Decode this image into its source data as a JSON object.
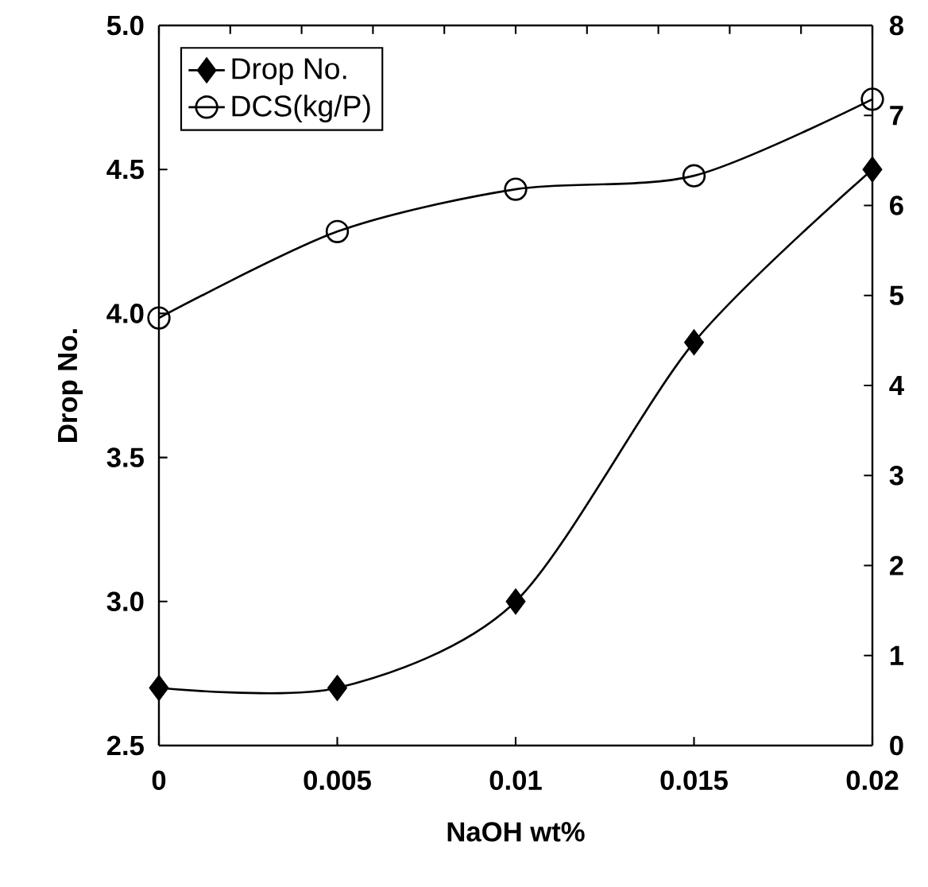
{
  "chart_data": {
    "type": "line",
    "xlabel": "NaOH wt%",
    "ylabel": "Drop No.",
    "x": [
      0,
      0.005,
      0.01,
      0.015,
      0.02
    ],
    "series": [
      {
        "name": "Drop No.",
        "color": "#000000",
        "marker": "diamond",
        "values": [
          2.7,
          2.7,
          3.0,
          3.9,
          4.5
        ]
      },
      {
        "name": "DCS(kg/P)",
        "color": "#000000",
        "marker": "circle",
        "axis": "y2",
        "values": [
          4.75,
          5.71,
          6.18,
          6.33,
          7.18
        ]
      }
    ],
    "xlim": [
      0,
      0.02
    ],
    "xticks": [
      0,
      0.005,
      0.01,
      0.015,
      0.02
    ],
    "ylim": [
      2.5,
      5.0
    ],
    "yticks": [
      {
        "value": 2.5,
        "label": "2.5"
      },
      {
        "value": 3.0,
        "label": "3.0"
      },
      {
        "value": 3.5,
        "label": "3.5"
      },
      {
        "value": 4.0,
        "label": "4.0"
      },
      {
        "value": 4.5,
        "label": "4.5"
      },
      {
        "value": 5.0,
        "label": "5.0"
      }
    ],
    "y2lim": [
      0,
      8
    ],
    "y2ticks": [
      0,
      1,
      2,
      3,
      4,
      5,
      6,
      7,
      8
    ],
    "legend": "top left",
    "grid": false,
    "line_style": "solid"
  }
}
